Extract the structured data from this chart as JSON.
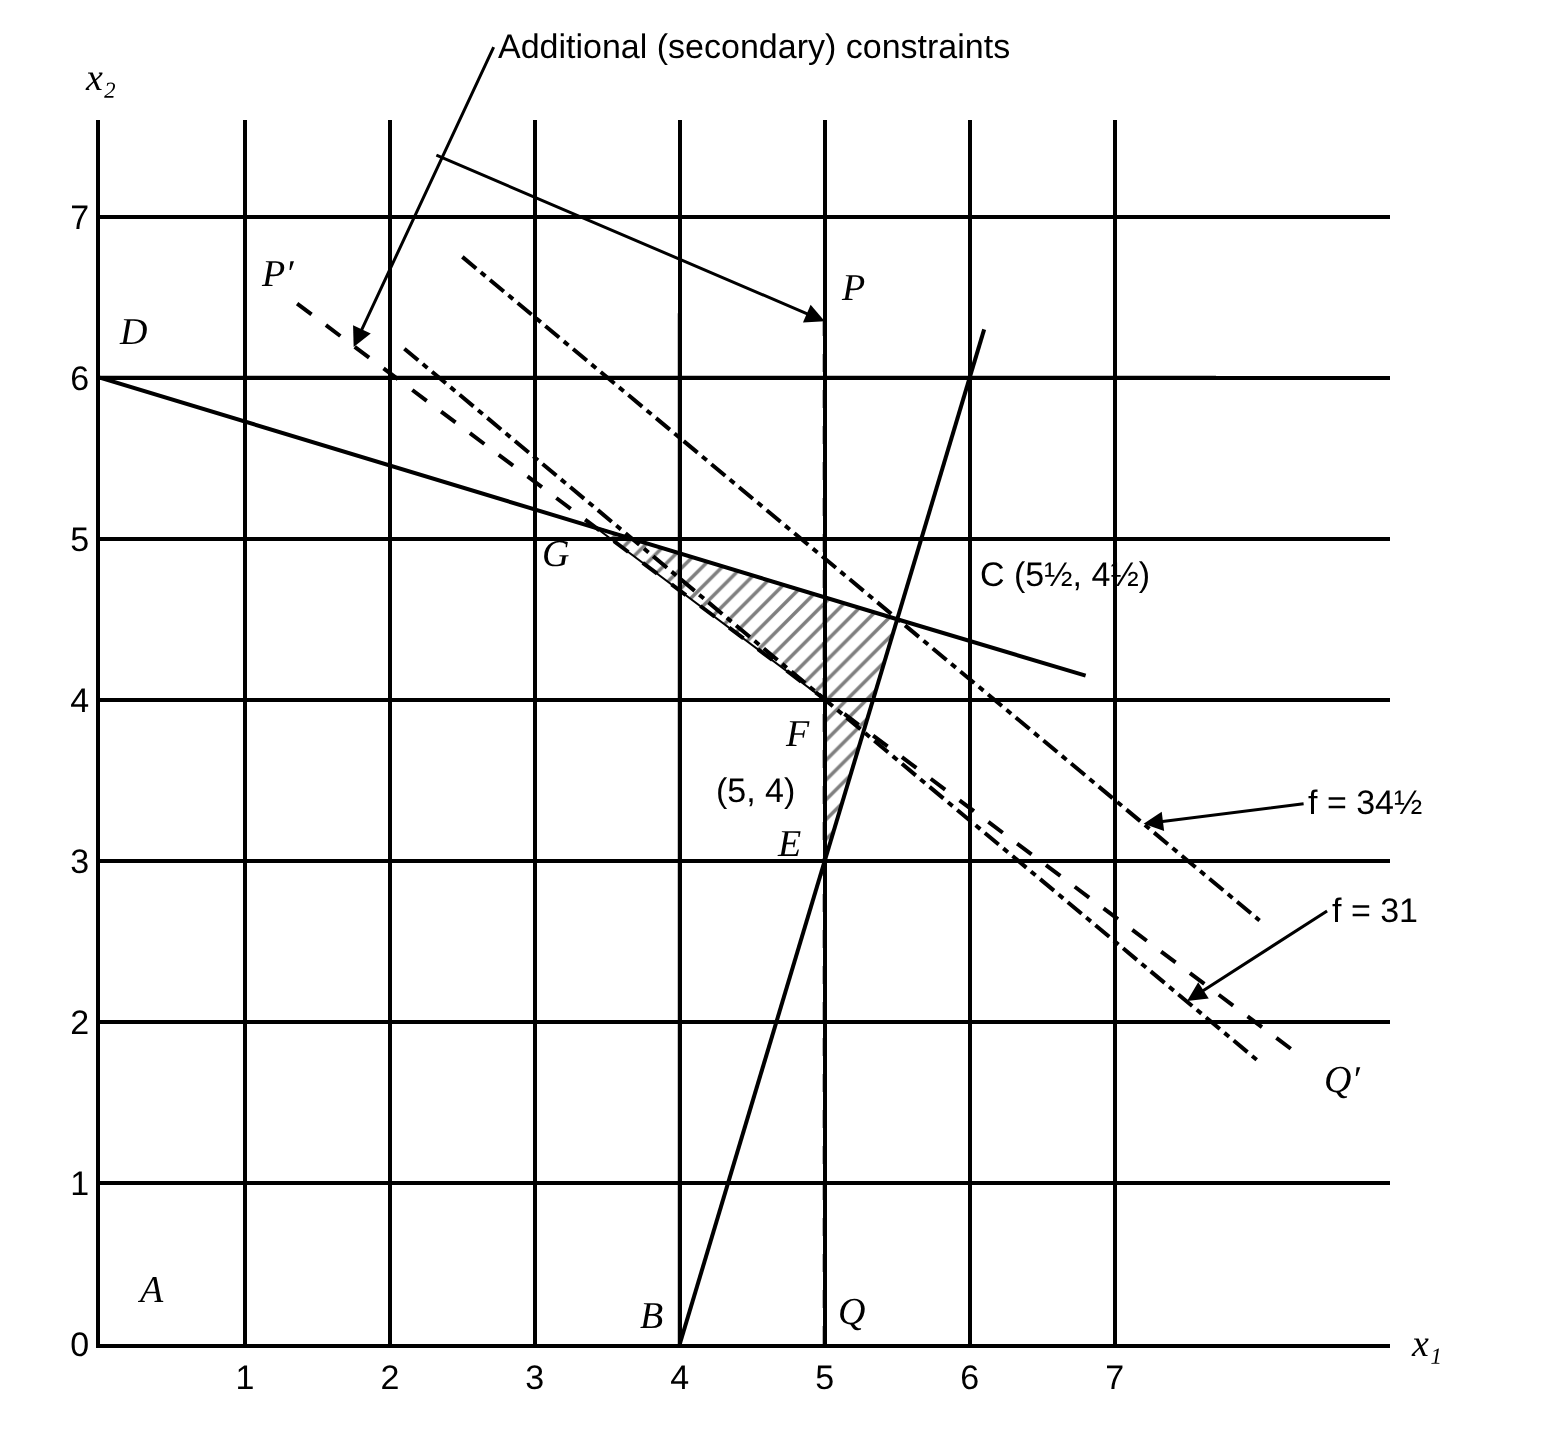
{
  "chart_data": {
    "type": "line",
    "xlabel": "x₁",
    "ylabel": "x₂",
    "xlim": [
      0,
      8.9
    ],
    "xticks": [
      1,
      2,
      3,
      4,
      5,
      6,
      7
    ],
    "ylim": [
      0,
      7.6
    ],
    "yticks": [
      0,
      1,
      2,
      3,
      4,
      5,
      6,
      7
    ],
    "grid": true,
    "marker": "none",
    "series": [
      {
        "color": "#000000",
        "line_style": "solid",
        "x": [
          0,
          7.7
        ],
        "values": [
          6,
          6
        ]
      },
      {
        "color": "#000000",
        "line_style": "solid",
        "x": [
          4,
          4
        ],
        "values": [
          0,
          6.4
        ]
      },
      {
        "color": "#000000",
        "line_style": "solid",
        "x": [
          0,
          5.5,
          6.8
        ],
        "values": [
          6,
          4.5,
          4.15
        ]
      },
      {
        "color": "#000000",
        "line_style": "solid",
        "x": [
          4,
          6.1
        ],
        "values": [
          0,
          6.3
        ]
      },
      {
        "color": "#000000",
        "line_style": "dashed",
        "x": [
          5,
          5
        ],
        "values": [
          0,
          6.35
        ]
      },
      {
        "color": "#000000",
        "line_style": "dashed",
        "x": [
          1.36,
          8.25
        ],
        "values": [
          6.46,
          1.81
        ]
      },
      {
        "color": "#000000",
        "line_style": "dashdot",
        "x": [
          2.1,
          8.0
        ],
        "values": [
          6.18,
          1.75
        ]
      },
      {
        "color": "#000000",
        "line_style": "dashdot",
        "x": [
          2.5,
          8.0
        ],
        "values": [
          6.75,
          2.63
        ]
      },
      {
        "type": "area",
        "color": "#000000",
        "x": [
          3.42,
          5.5,
          5,
          5,
          3.42
        ],
        "values": [
          5.07,
          4.5,
          3,
          4,
          5.07
        ]
      }
    ],
    "annotations": [
      "A",
      {
        "text": "B",
        "x": 4,
        "y": 0
      },
      {
        "text": "C (5½, 4½)",
        "x": 5.5,
        "y": 4.5
      },
      {
        "text": "D",
        "x": 0,
        "y": 6
      },
      {
        "text": "E",
        "x": 5,
        "y": 3
      },
      {
        "text": "F",
        "x": 5,
        "y": 4
      },
      {
        "text": "(5, 4)",
        "x": 5,
        "y": 4
      },
      {
        "text": "G",
        "x": 3.42,
        "y": 5.07
      },
      {
        "text": "P",
        "x": 5,
        "y": 6.35
      },
      {
        "text": "Q",
        "x": 5,
        "y": 0
      },
      {
        "text": "P′",
        "x": 1.36,
        "y": 6.46
      },
      {
        "text": "Q′",
        "x": 8.25,
        "y": 1.81
      },
      {
        "text": "f = 34½",
        "x": 7.2,
        "y": 3.23
      },
      {
        "text": "f = 31",
        "x": 7.5,
        "y": 2.13
      },
      {
        "text": "Additional (secondary) constraints",
        "x": 1.75,
        "y": 6.19
      }
    ]
  }
}
